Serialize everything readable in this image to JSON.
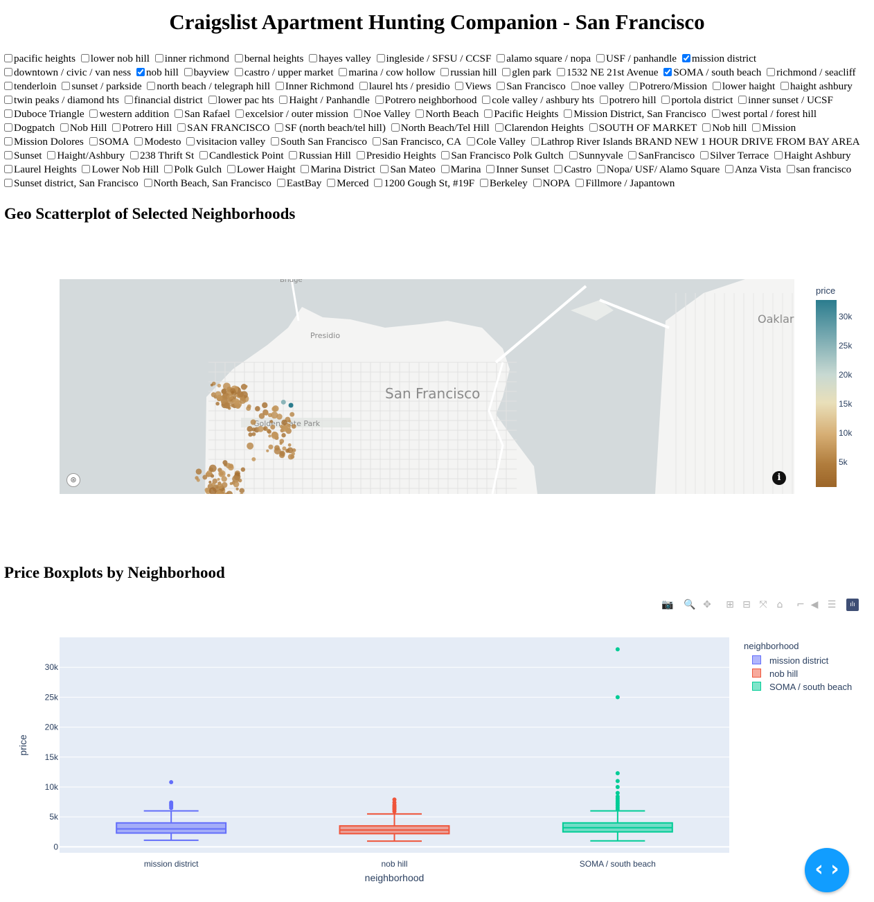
{
  "page_title": "Craigslist Apartment Hunting Companion - San Francisco",
  "neighborhoods": [
    {
      "label": "pacific heights",
      "checked": false
    },
    {
      "label": "lower nob hill",
      "checked": false
    },
    {
      "label": "inner richmond",
      "checked": false
    },
    {
      "label": "bernal heights",
      "checked": false
    },
    {
      "label": "hayes valley",
      "checked": false
    },
    {
      "label": "ingleside / SFSU / CCSF",
      "checked": false
    },
    {
      "label": "alamo square / nopa",
      "checked": false
    },
    {
      "label": "USF / panhandle",
      "checked": false
    },
    {
      "label": "mission district",
      "checked": true
    },
    {
      "label": "downtown / civic / van ness",
      "checked": false
    },
    {
      "label": "nob hill",
      "checked": true
    },
    {
      "label": "bayview",
      "checked": false
    },
    {
      "label": "castro / upper market",
      "checked": false
    },
    {
      "label": "marina / cow hollow",
      "checked": false
    },
    {
      "label": "russian hill",
      "checked": false
    },
    {
      "label": "glen park",
      "checked": false
    },
    {
      "label": "1532 NE 21st Avenue",
      "checked": false
    },
    {
      "label": "SOMA / south beach",
      "checked": true
    },
    {
      "label": "richmond / seacliff",
      "checked": false
    },
    {
      "label": "tenderloin",
      "checked": false
    },
    {
      "label": "sunset / parkside",
      "checked": false
    },
    {
      "label": "north beach / telegraph hill",
      "checked": false
    },
    {
      "label": "Inner Richmond",
      "checked": false
    },
    {
      "label": "laurel hts / presidio",
      "checked": false
    },
    {
      "label": "Views",
      "checked": false
    },
    {
      "label": "San Francisco",
      "checked": false
    },
    {
      "label": "noe valley",
      "checked": false
    },
    {
      "label": "Potrero/Mission",
      "checked": false
    },
    {
      "label": "lower haight",
      "checked": false
    },
    {
      "label": "haight ashbury",
      "checked": false
    },
    {
      "label": "twin peaks / diamond hts",
      "checked": false
    },
    {
      "label": "financial district",
      "checked": false
    },
    {
      "label": "lower pac hts",
      "checked": false
    },
    {
      "label": "Haight / Panhandle",
      "checked": false
    },
    {
      "label": "Potrero neighborhood",
      "checked": false
    },
    {
      "label": "cole valley / ashbury hts",
      "checked": false
    },
    {
      "label": "potrero hill",
      "checked": false
    },
    {
      "label": "portola district",
      "checked": false
    },
    {
      "label": "inner sunset / UCSF",
      "checked": false
    },
    {
      "label": "Duboce Triangle",
      "checked": false
    },
    {
      "label": "western addition",
      "checked": false
    },
    {
      "label": "San Rafael",
      "checked": false
    },
    {
      "label": "excelsior / outer mission",
      "checked": false
    },
    {
      "label": "Noe Valley",
      "checked": false
    },
    {
      "label": "North Beach",
      "checked": false
    },
    {
      "label": "Pacific Heights",
      "checked": false
    },
    {
      "label": "Mission District, San Francisco",
      "checked": false
    },
    {
      "label": "west portal / forest hill",
      "checked": false
    },
    {
      "label": "Dogpatch",
      "checked": false
    },
    {
      "label": "Nob Hill",
      "checked": false
    },
    {
      "label": "Potrero Hill",
      "checked": false
    },
    {
      "label": "SAN FRANCISCO",
      "checked": false
    },
    {
      "label": "SF (north beach/tel hill)",
      "checked": false
    },
    {
      "label": "North Beach/Tel Hill",
      "checked": false
    },
    {
      "label": "Clarendon Heights",
      "checked": false
    },
    {
      "label": "SOUTH OF MARKET",
      "checked": false
    },
    {
      "label": "Nob hill",
      "checked": false
    },
    {
      "label": "Mission",
      "checked": false
    },
    {
      "label": "Mission Dolores",
      "checked": false
    },
    {
      "label": "SOMA",
      "checked": false
    },
    {
      "label": "Modesto",
      "checked": false
    },
    {
      "label": "visitacion valley",
      "checked": false
    },
    {
      "label": "South San Francisco",
      "checked": false
    },
    {
      "label": "San Francisco, CA",
      "checked": false
    },
    {
      "label": "Cole Valley",
      "checked": false
    },
    {
      "label": "Lathrop River Islands BRAND NEW 1 HOUR DRIVE FROM BAY AREA",
      "checked": false
    },
    {
      "label": "Sunset",
      "checked": false
    },
    {
      "label": "Haight/Ashbury",
      "checked": false
    },
    {
      "label": "238 Thrift St",
      "checked": false
    },
    {
      "label": "Candlestick Point",
      "checked": false
    },
    {
      "label": "Russian Hill",
      "checked": false
    },
    {
      "label": "Presidio Heights",
      "checked": false
    },
    {
      "label": "San Francisco Polk Gultch",
      "checked": false
    },
    {
      "label": "Sunnyvale",
      "checked": false
    },
    {
      "label": "SanFrancisco",
      "checked": false
    },
    {
      "label": "Silver Terrace",
      "checked": false
    },
    {
      "label": "Haight Ashbury",
      "checked": false
    },
    {
      "label": "Laurel Heights",
      "checked": false
    },
    {
      "label": "Lower Nob Hill",
      "checked": false
    },
    {
      "label": "Polk Gulch",
      "checked": false
    },
    {
      "label": "Lower Haight",
      "checked": false
    },
    {
      "label": "Marina District",
      "checked": false
    },
    {
      "label": "San Mateo",
      "checked": false
    },
    {
      "label": "Marina",
      "checked": false
    },
    {
      "label": "Inner Sunset",
      "checked": false
    },
    {
      "label": "Castro",
      "checked": false
    },
    {
      "label": "Nopa/ USF/ Alamo Square",
      "checked": false
    },
    {
      "label": "Anza Vista",
      "checked": false
    },
    {
      "label": "san francisco",
      "checked": false
    },
    {
      "label": "Sunset district, San Francisco",
      "checked": false
    },
    {
      "label": "North Beach, San Francisco",
      "checked": false
    },
    {
      "label": "EastBay",
      "checked": false
    },
    {
      "label": "Merced",
      "checked": false
    },
    {
      "label": "1200 Gough St, #19F",
      "checked": false
    },
    {
      "label": "Berkeley",
      "checked": false
    },
    {
      "label": "NOPA",
      "checked": false
    },
    {
      "label": "Fillmore / Japantown",
      "checked": false
    }
  ],
  "map_section": {
    "heading": "Geo Scatterplot of Selected Neighborhoods",
    "labels": {
      "city": "San Francisco",
      "presidio": "Presidio",
      "golden_gate_park": "Golden Gate Park",
      "oakland": "Oaklar",
      "bridge": "Bridge"
    },
    "colorbar": {
      "title": "price",
      "ticks": [
        "30k",
        "25k",
        "20k",
        "15k",
        "10k",
        "5k"
      ]
    },
    "colors": {
      "low": "#9c6528",
      "mid": "#e9dfb9",
      "high": "#2b7c8e",
      "water": "#d4dadc",
      "land": "#f4f4f3"
    }
  },
  "box_section": {
    "heading": "Price Boxplots by Neighborhood",
    "modebar": [
      {
        "icon": "camera-icon",
        "glyph": "📷"
      },
      {
        "icon": "zoom-icon",
        "glyph": "🔍"
      },
      {
        "icon": "pan-icon",
        "glyph": "✥"
      },
      {
        "icon": "zoom-in-icon",
        "glyph": "⊞"
      },
      {
        "icon": "zoom-out-icon",
        "glyph": "⊟"
      },
      {
        "icon": "autoscale-icon",
        "glyph": "⤧"
      },
      {
        "icon": "reset-axes-icon",
        "glyph": "⌂"
      },
      {
        "icon": "spike-lines-icon",
        "glyph": "⌐"
      },
      {
        "icon": "hover-closest-icon",
        "glyph": "◀"
      },
      {
        "icon": "hover-compare-icon",
        "glyph": "☰"
      },
      {
        "icon": "plotly-logo-icon",
        "glyph": "ılı"
      }
    ],
    "fab_glyph": "‹ ›"
  },
  "chart_data": [
    {
      "type": "scatter",
      "subtype": "geo-scatter",
      "colorbar_title": "price",
      "color_range": [
        0,
        33000
      ],
      "colorbar_ticks": [
        5000,
        10000,
        15000,
        20000,
        25000,
        30000
      ],
      "clusters": [
        {
          "neighborhood": "nob hill",
          "center": [
            -122.4145,
            37.792
          ],
          "count": 60
        },
        {
          "neighborhood": "SOMA / south beach",
          "center": [
            -122.3975,
            37.78
          ],
          "count": 60
        },
        {
          "neighborhood": "mission district",
          "center": [
            -122.419,
            37.761
          ],
          "count": 110
        }
      ],
      "highlight_points": [
        {
          "lon": -122.3905,
          "lat": 37.789,
          "price": 33000
        },
        {
          "lon": -122.3935,
          "lat": 37.79,
          "price": 25000
        }
      ]
    },
    {
      "type": "box",
      "title": "",
      "xlabel": "neighborhood",
      "ylabel": "price",
      "ylim": [
        -1000,
        35000
      ],
      "yticks": [
        0,
        5000,
        10000,
        15000,
        20000,
        25000,
        30000
      ],
      "ytick_labels": [
        "0",
        "5k",
        "10k",
        "15k",
        "20k",
        "25k",
        "30k"
      ],
      "legend_title": "neighborhood",
      "series": [
        {
          "name": "mission district",
          "color": "#636efa",
          "min": 1100,
          "q1": 2300,
          "median": 3000,
          "q3": 4000,
          "max": 6000,
          "outliers": [
            6500,
            6800,
            7000,
            7200,
            7400,
            10800
          ]
        },
        {
          "name": "nob hill",
          "color": "#ef553b",
          "min": 950,
          "q1": 2200,
          "median": 2800,
          "q3": 3500,
          "max": 5500,
          "outliers": [
            5900,
            6200,
            6400,
            6600,
            6800,
            7000,
            7400,
            7900
          ]
        },
        {
          "name": "SOMA / south beach",
          "color": "#00cc96",
          "min": 1000,
          "q1": 2500,
          "median": 3200,
          "q3": 4000,
          "max": 6000,
          "outliers": [
            6300,
            6600,
            6900,
            7200,
            7500,
            7800,
            8100,
            8400,
            9000,
            10000,
            11000,
            12300,
            25000,
            33000
          ]
        }
      ]
    }
  ]
}
